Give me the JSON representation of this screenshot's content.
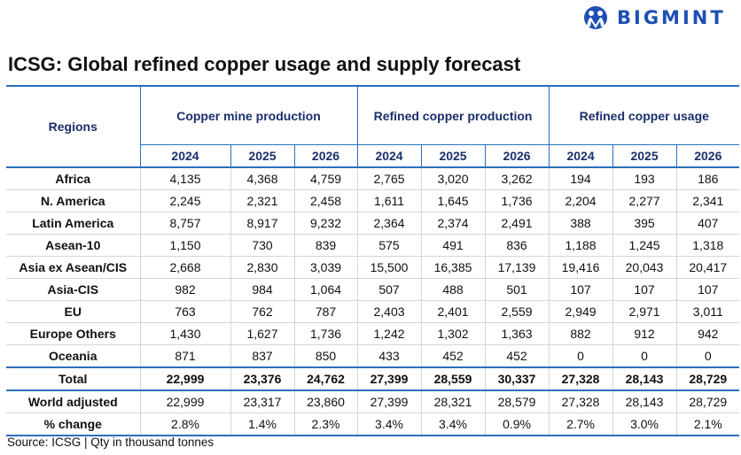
{
  "brand": {
    "name": "BIGMINT",
    "color": "#1d4fb5"
  },
  "title": "ICSG: Global refined copper usage and supply forecast",
  "table": {
    "region_header": "Regions",
    "groups": [
      "Copper mine production",
      "Refined copper production",
      "Refined copper usage"
    ],
    "years": [
      "2024",
      "2025",
      "2026"
    ],
    "rows": [
      {
        "region": "Africa",
        "values": [
          "4,135",
          "4,368",
          "4,759",
          "2,765",
          "3,020",
          "3,262",
          "194",
          "193",
          "186"
        ]
      },
      {
        "region": "N. America",
        "values": [
          "2,245",
          "2,321",
          "2,458",
          "1,611",
          "1,645",
          "1,736",
          "2,204",
          "2,277",
          "2,341"
        ]
      },
      {
        "region": "Latin America",
        "values": [
          "8,757",
          "8,917",
          "9,232",
          "2,364",
          "2,374",
          "2,491",
          "388",
          "395",
          "407"
        ]
      },
      {
        "region": "Asean-10",
        "values": [
          "1,150",
          "730",
          "839",
          "575",
          "491",
          "836",
          "1,188",
          "1,245",
          "1,318"
        ]
      },
      {
        "region": "Asia ex Asean/CIS",
        "values": [
          "2,668",
          "2,830",
          "3,039",
          "15,500",
          "16,385",
          "17,139",
          "19,416",
          "20,043",
          "20,417"
        ]
      },
      {
        "region": "Asia-CIS",
        "values": [
          "982",
          "984",
          "1,064",
          "507",
          "488",
          "501",
          "107",
          "107",
          "107"
        ]
      },
      {
        "region": "EU",
        "values": [
          "763",
          "762",
          "787",
          "2,403",
          "2,401",
          "2,559",
          "2,949",
          "2,971",
          "3,011"
        ]
      },
      {
        "region": "Europe Others",
        "values": [
          "1,430",
          "1,627",
          "1,736",
          "1,242",
          "1,302",
          "1,363",
          "882",
          "912",
          "942"
        ]
      },
      {
        "region": "Oceania",
        "values": [
          "871",
          "837",
          "850",
          "433",
          "452",
          "452",
          "0",
          "0",
          "0"
        ]
      },
      {
        "region": "Total",
        "values": [
          "22,999",
          "23,376",
          "24,762",
          "27,399",
          "28,559",
          "30,337",
          "27,328",
          "28,143",
          "28,729"
        ]
      },
      {
        "region": "World adjusted",
        "values": [
          "22,999",
          "23,317",
          "23,860",
          "27,399",
          "28,321",
          "28,579",
          "27,328",
          "28,143",
          "28,729"
        ]
      },
      {
        "region": "% change",
        "values": [
          "2.8%",
          "1.4%",
          "2.3%",
          "3.4%",
          "3.4%",
          "0.9%",
          "2.7%",
          "3.0%",
          "2.1%"
        ]
      }
    ]
  },
  "source": "Source: ICSG | Qty in thousand tonnes"
}
